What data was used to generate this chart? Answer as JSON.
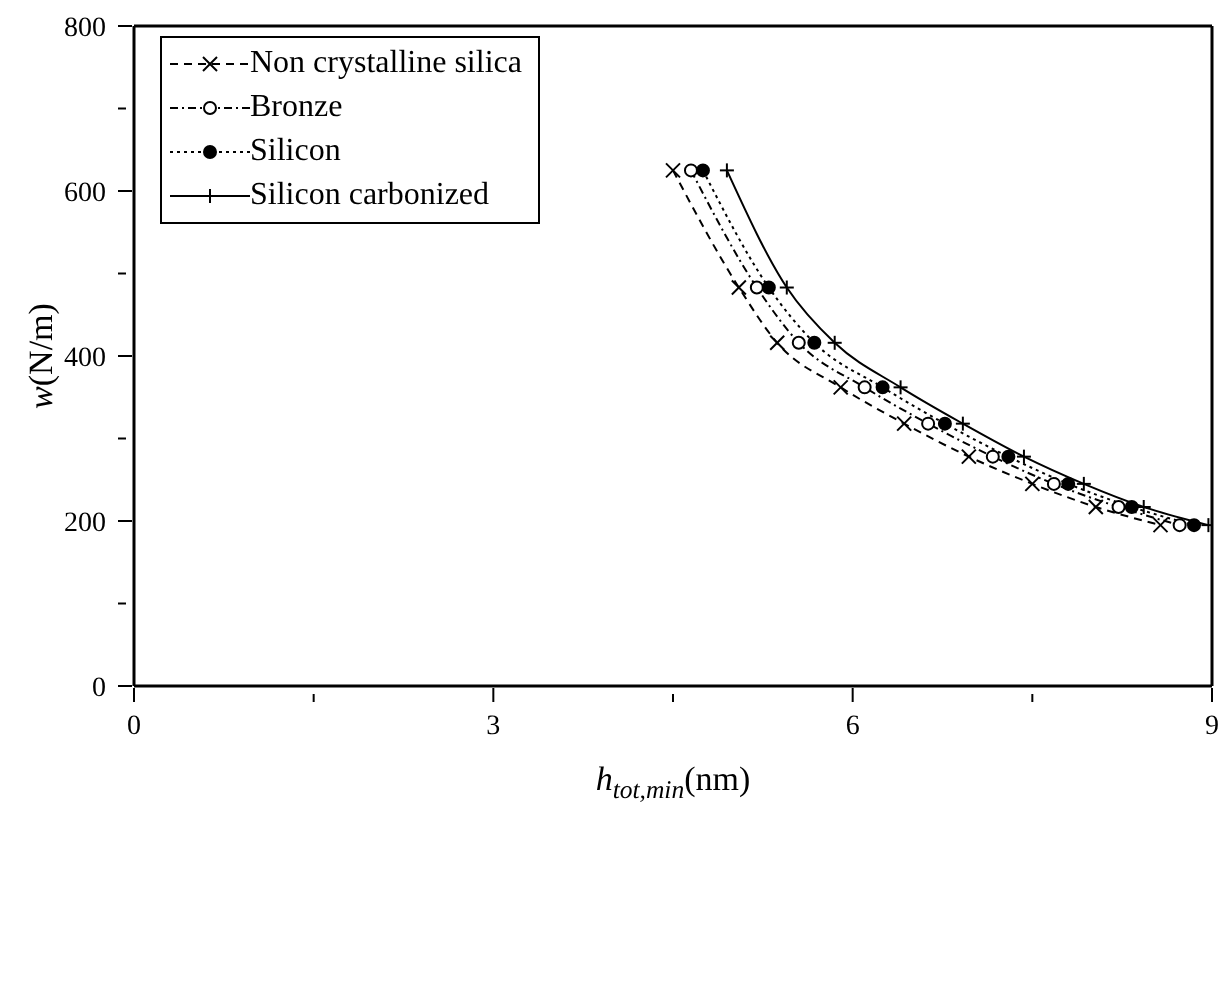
{
  "chart_data": {
    "type": "line",
    "xlabel": "h$_{tot,min}$(nm)",
    "ylabel": "w(N/m)",
    "xlim": [
      0,
      9
    ],
    "xticks": [
      0,
      {
        "value": 1.5,
        "label": null
      },
      3,
      {
        "value": 4.5,
        "label": null
      },
      6,
      {
        "value": 7.5,
        "label": null
      },
      9
    ],
    "ylim": [
      0,
      800
    ],
    "yticks": [
      0,
      {
        "value": 100,
        "label": null
      },
      200,
      {
        "value": 300,
        "label": null
      },
      400,
      {
        "value": 500,
        "label": null
      },
      600,
      {
        "value": 700,
        "label": null
      },
      800
    ],
    "legend": "top left",
    "series": [
      {
        "name": "Non crystalline silica",
        "color": "#000000",
        "marker": "cross",
        "line_style": "dashed",
        "x": [
          4.5,
          5.05,
          5.37,
          5.9,
          6.43,
          6.97,
          7.5,
          8.03,
          8.57
        ],
        "values": [
          625,
          483,
          416,
          362,
          318,
          278,
          245,
          217,
          195
        ]
      },
      {
        "name": "Bronze",
        "color": "#000000",
        "marker": "circle-open",
        "line_style": "dashdot",
        "x": [
          4.65,
          5.2,
          5.55,
          6.1,
          6.63,
          7.17,
          7.68,
          8.22,
          8.73
        ],
        "values": [
          625,
          483,
          416,
          362,
          318,
          278,
          245,
          217,
          195
        ]
      },
      {
        "name": "Silicon",
        "color": "#000000",
        "marker": "circle",
        "line_style": "dotted",
        "x": [
          4.75,
          5.3,
          5.68,
          6.25,
          6.77,
          7.3,
          7.8,
          8.33,
          8.85
        ],
        "values": [
          625,
          483,
          416,
          362,
          318,
          278,
          245,
          217,
          195
        ]
      },
      {
        "name": "Silicon carbonized",
        "color": "#000000",
        "marker": "plus",
        "line_style": "solid",
        "x": [
          4.95,
          5.45,
          5.85,
          6.4,
          6.92,
          7.43,
          7.93,
          8.43,
          8.97
        ],
        "values": [
          625,
          483,
          416,
          362,
          318,
          278,
          245,
          217,
          195
        ]
      }
    ]
  }
}
